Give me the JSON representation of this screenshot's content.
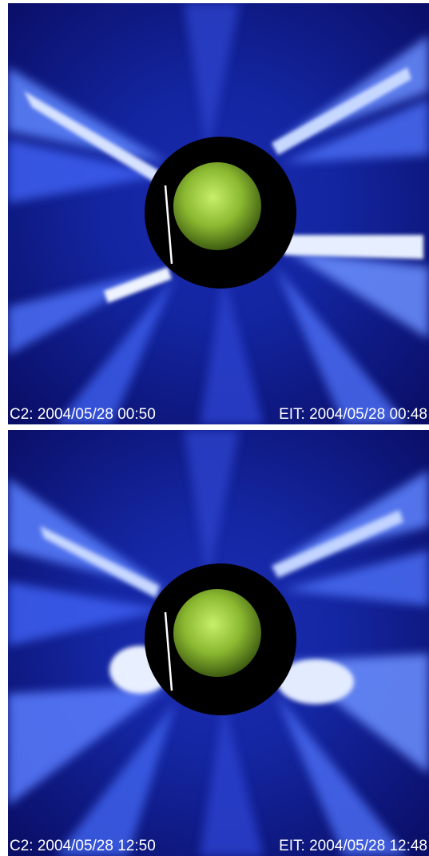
{
  "panels": [
    {
      "c2_label": "C2: 2004/05/28 00:50",
      "eit_label": "EIT: 2004/05/28 00:48"
    },
    {
      "c2_label": "C2: 2004/05/28 12:50",
      "eit_label": "EIT: 2004/05/28 12:48"
    }
  ],
  "colors": {
    "background": "#0b0f6a",
    "corona": "#5d7dff",
    "occulter": "#000000",
    "sun": "#9ccf3a"
  }
}
